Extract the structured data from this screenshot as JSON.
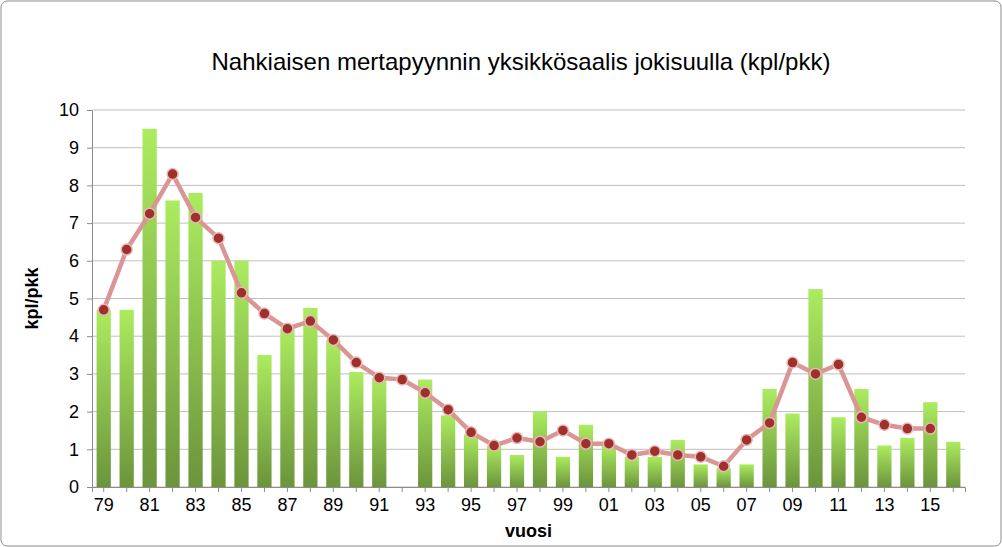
{
  "chart_data": {
    "type": "bar",
    "title": "Nahkiaisen mertapyynnin yksikkösaalis jokisuulla (kpl/pkk)",
    "x_label": "vuosi",
    "y_label": "kpl/pkk",
    "categories": [
      "79",
      null,
      "81",
      null,
      "83",
      null,
      "85",
      null,
      "87",
      null,
      "89",
      null,
      "91",
      null,
      "93",
      null,
      "95",
      null,
      "97",
      null,
      "99",
      null,
      "01",
      null,
      "03",
      null,
      "05",
      null,
      "07",
      null,
      "09",
      null,
      "11",
      null,
      "13",
      null,
      "15",
      null
    ],
    "series": [
      {
        "type": "bar",
        "color": "#7cab45",
        "values": [
          4.7,
          4.7,
          9.5,
          7.6,
          7.8,
          6.0,
          6.0,
          3.5,
          4.2,
          4.75,
          3.9,
          3.05,
          2.9,
          null,
          2.85,
          1.9,
          1.4,
          1.1,
          0.85,
          2.0,
          0.8,
          1.65,
          1.1,
          0.8,
          0.8,
          1.25,
          0.6,
          0.5,
          0.6,
          2.6,
          1.95,
          5.25,
          1.85,
          2.6,
          1.1,
          1.3,
          2.25,
          1.2
        ]
      },
      {
        "type": "line",
        "color": "#d99694",
        "marker": "circle",
        "values": [
          4.7,
          6.3,
          7.25,
          8.3,
          7.15,
          6.6,
          5.15,
          4.6,
          4.2,
          4.4,
          3.9,
          3.3,
          2.9,
          2.85,
          2.5,
          2.05,
          1.45,
          1.1,
          1.3,
          1.2,
          1.5,
          1.15,
          1.15,
          0.85,
          0.95,
          0.85,
          0.8,
          0.55,
          1.25,
          1.7,
          3.3,
          3.0,
          3.25,
          1.85,
          1.65,
          1.55,
          1.55,
          null
        ]
      }
    ],
    "ylim": [
      0,
      10
    ],
    "yticks": [
      0,
      1,
      2,
      3,
      4,
      5,
      6,
      7,
      8,
      9,
      10
    ],
    "grid": true
  }
}
